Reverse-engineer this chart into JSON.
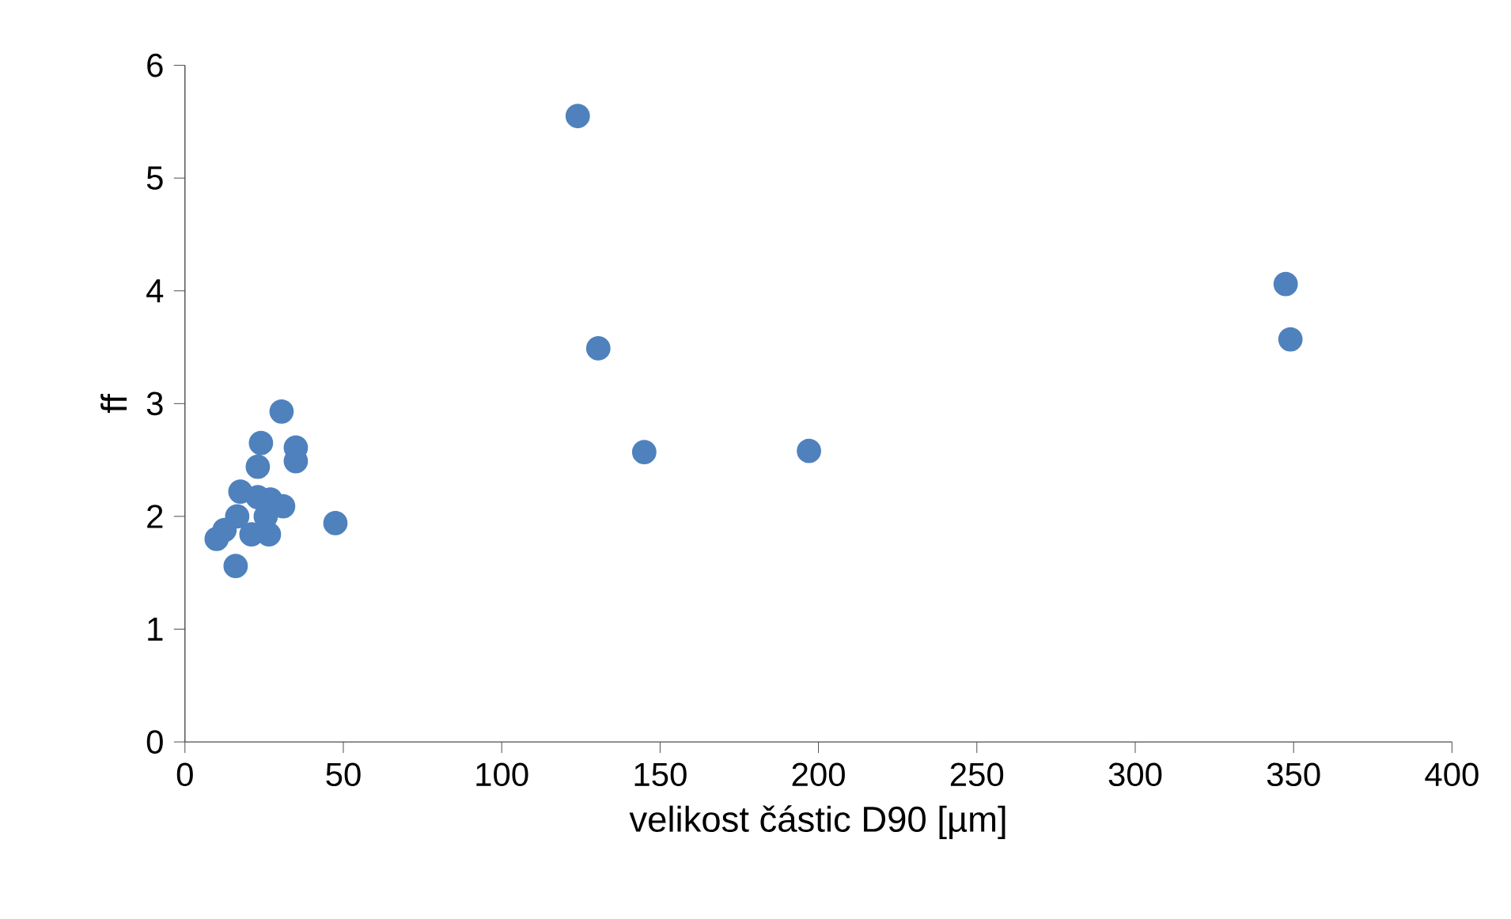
{
  "chart_data": {
    "type": "scatter",
    "xlabel": "velikost částic D90 [µm]",
    "ylabel": "ff",
    "xlim": [
      0,
      400
    ],
    "ylim": [
      0,
      6
    ],
    "xticks": [
      0,
      50,
      100,
      150,
      200,
      250,
      300,
      350,
      400
    ],
    "yticks": [
      0,
      1,
      2,
      3,
      4,
      5,
      6
    ],
    "grid": false,
    "marker": "circle",
    "series": [
      {
        "color": "#4f81bd",
        "x": [
          124,
          130.5,
          145,
          197,
          347.5,
          349,
          47.5,
          30.5,
          35,
          35,
          24,
          23,
          16,
          10,
          12.5,
          17.5,
          23,
          27,
          31,
          26.5,
          21,
          16.5,
          25.5
        ],
        "values": [
          5.55,
          3.49,
          2.57,
          2.58,
          4.06,
          3.57,
          1.94,
          2.93,
          2.61,
          2.49,
          2.65,
          2.44,
          1.56,
          1.8,
          1.88,
          2.22,
          2.17,
          2.15,
          2.09,
          1.84,
          1.84,
          2.0,
          2.0
        ]
      }
    ]
  }
}
